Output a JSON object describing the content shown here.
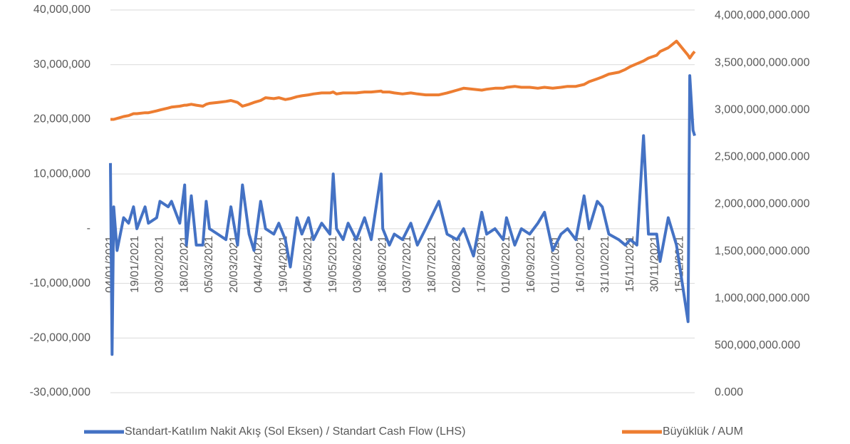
{
  "chart_data": {
    "type": "line",
    "x": [
      "04/01/2021",
      "05/01/2021",
      "06/01/2021",
      "08/01/2021",
      "12/01/2021",
      "15/01/2021",
      "18/01/2021",
      "20/01/2021",
      "25/01/2021",
      "27/01/2021",
      "01/02/2021",
      "03/02/2021",
      "08/02/2021",
      "10/02/2021",
      "15/02/2021",
      "18/02/2021",
      "19/02/2021",
      "22/02/2021",
      "25/02/2021",
      "01/03/2021",
      "03/03/2021",
      "05/03/2021",
      "10/03/2021",
      "15/03/2021",
      "18/03/2021",
      "22/03/2021",
      "25/03/2021",
      "29/03/2021",
      "01/04/2021",
      "05/04/2021",
      "08/04/2021",
      "13/04/2021",
      "16/04/2021",
      "20/04/2021",
      "23/04/2021",
      "27/04/2021",
      "30/04/2021",
      "04/05/2021",
      "07/05/2021",
      "12/05/2021",
      "17/05/2021",
      "19/05/2021",
      "21/05/2021",
      "25/05/2021",
      "28/05/2021",
      "02/06/2021",
      "07/06/2021",
      "11/06/2021",
      "17/06/2021",
      "18/06/2021",
      "22/06/2021",
      "25/06/2021",
      "30/06/2021",
      "05/07/2021",
      "09/07/2021",
      "14/07/2021",
      "22/07/2021",
      "27/07/2021",
      "02/08/2021",
      "06/08/2021",
      "12/08/2021",
      "17/08/2021",
      "20/08/2021",
      "25/08/2021",
      "30/08/2021",
      "01/09/2021",
      "06/09/2021",
      "10/09/2021",
      "15/09/2021",
      "20/09/2021",
      "24/09/2021",
      "29/09/2021",
      "04/10/2021",
      "08/10/2021",
      "13/10/2021",
      "18/10/2021",
      "21/10/2021",
      "26/10/2021",
      "29/10/2021",
      "02/11/2021",
      "08/11/2021",
      "12/11/2021",
      "15/11/2021",
      "19/11/2021",
      "23/11/2021",
      "26/11/2021",
      "01/12/2021",
      "03/12/2021",
      "08/12/2021",
      "13/12/2021",
      "20/12/2021",
      "21/12/2021",
      "23/12/2021",
      "24/12/2021"
    ],
    "xlim": [
      "04/01/2021",
      "24/12/2021"
    ],
    "xticks": [
      "04/01/2021",
      "19/01/2021",
      "03/02/2021",
      "18/02/2021",
      "05/03/2021",
      "20/03/2021",
      "04/04/2021",
      "19/04/2021",
      "04/05/2021",
      "19/05/2021",
      "03/06/2021",
      "18/06/2021",
      "03/07/2021",
      "18/07/2021",
      "02/08/2021",
      "17/08/2021",
      "01/09/2021",
      "16/09/2021",
      "01/10/2021",
      "16/10/2021",
      "31/10/2021",
      "15/11/2021",
      "30/11/2021",
      "15/12/2021"
    ],
    "ylim": [
      -30000000,
      40000000
    ],
    "yticks": [
      {
        "value": 40000000,
        "label": "40,000,000"
      },
      {
        "value": 30000000,
        "label": "30,000,000"
      },
      {
        "value": 20000000,
        "label": "20,000,000"
      },
      {
        "value": 10000000,
        "label": "10,000,000"
      },
      {
        "value": 0,
        "label": "-"
      },
      {
        "value": -10000000,
        "label": "-10,000,000"
      },
      {
        "value": -20000000,
        "label": "-20,000,000"
      },
      {
        "value": -30000000,
        "label": "-30,000,000"
      }
    ],
    "y2lim": [
      0,
      4000000000000
    ],
    "y2ticks": [
      {
        "value": 4000000000000,
        "label": "4,000,000,000.000"
      },
      {
        "value": 3500000000000,
        "label": "3,500,000,000.000"
      },
      {
        "value": 3000000000000,
        "label": "3,000,000,000.000"
      },
      {
        "value": 2500000000000,
        "label": "2,500,000,000.000"
      },
      {
        "value": 2000000000000,
        "label": "2,000,000,000.000"
      },
      {
        "value": 1500000000000,
        "label": "1,500,000,000.000"
      },
      {
        "value": 1000000000000,
        "label": "1,000,000,000.000"
      },
      {
        "value": 500000000000,
        "label": "500,000,000.000"
      },
      {
        "value": 0,
        "label": "0.000"
      }
    ],
    "grid": true,
    "legend": "bottom",
    "series": [
      {
        "name": "Standart-Katılım Nakit Akış (Sol Eksen) / Standart Cash Flow (LHS)",
        "color": "#4472c4",
        "values": [
          12000000,
          -23000000,
          4000000,
          -4000000,
          2000000,
          1000000,
          4000000,
          0,
          4000000,
          1000000,
          2000000,
          5000000,
          4000000,
          5000000,
          1000000,
          8000000,
          -3000000,
          6000000,
          -3000000,
          -3000000,
          5000000,
          0,
          -1000000,
          -2000000,
          4000000,
          -3000000,
          8000000,
          -1000000,
          -4000000,
          5000000,
          0,
          -1000000,
          1000000,
          -2000000,
          -7000000,
          2000000,
          -1000000,
          2000000,
          -2000000,
          1000000,
          -1000000,
          10000000,
          0,
          -2000000,
          1000000,
          -2000000,
          2000000,
          -2000000,
          10000000,
          0,
          -3000000,
          -1000000,
          -2000000,
          1000000,
          -3000000,
          0,
          5000000,
          -1000000,
          -2000000,
          0,
          -5000000,
          3000000,
          -1000000,
          0,
          -2000000,
          2000000,
          -3000000,
          0,
          -1000000,
          1000000,
          3000000,
          -4000000,
          -1000000,
          0,
          -2000000,
          6000000,
          0,
          5000000,
          4000000,
          -1000000,
          -2000000,
          -3000000,
          -2000000,
          -3000000,
          17000000,
          -1000000,
          -1000000,
          -6000000,
          2000000,
          -3000000,
          -17000000,
          28000000,
          18000000,
          17000000
        ]
      },
      {
        "name": "Büyüklük / AUM",
        "color": "#ed7d31",
        "axis": "y2",
        "values": [
          2900000000000.0,
          2900000000000.0,
          2900000000000.0,
          2910000000000.0,
          2930000000000.0,
          2940000000000.0,
          2960000000000.0,
          2960000000000.0,
          2970000000000.0,
          2970000000000.0,
          2990000000000.0,
          3000000000000.0,
          3020000000000.0,
          3030000000000.0,
          3040000000000.0,
          3050000000000.0,
          3050000000000.0,
          3060000000000.0,
          3050000000000.0,
          3040000000000.0,
          3060000000000.0,
          3070000000000.0,
          3080000000000.0,
          3090000000000.0,
          3100000000000.0,
          3080000000000.0,
          3040000000000.0,
          3060000000000.0,
          3080000000000.0,
          3100000000000.0,
          3130000000000.0,
          3120000000000.0,
          3130000000000.0,
          3110000000000.0,
          3120000000000.0,
          3140000000000.0,
          3150000000000.0,
          3160000000000.0,
          3170000000000.0,
          3180000000000.0,
          3180000000000.0,
          3190000000000.0,
          3170000000000.0,
          3180000000000.0,
          3180000000000.0,
          3180000000000.0,
          3190000000000.0,
          3190000000000.0,
          3200000000000.0,
          3190000000000.0,
          3190000000000.0,
          3180000000000.0,
          3170000000000.0,
          3180000000000.0,
          3170000000000.0,
          3160000000000.0,
          3160000000000.0,
          3180000000000.0,
          3210000000000.0,
          3230000000000.0,
          3220000000000.0,
          3210000000000.0,
          3220000000000.0,
          3230000000000.0,
          3230000000000.0,
          3240000000000.0,
          3250000000000.0,
          3240000000000.0,
          3240000000000.0,
          3230000000000.0,
          3240000000000.0,
          3230000000000.0,
          3240000000000.0,
          3250000000000.0,
          3250000000000.0,
          3270000000000.0,
          3300000000000.0,
          3330000000000.0,
          3350000000000.0,
          3380000000000.0,
          3400000000000.0,
          3430000000000.0,
          3460000000000.0,
          3490000000000.0,
          3520000000000.0,
          3550000000000.0,
          3580000000000.0,
          3620000000000.0,
          3660000000000.0,
          3730000000000.0,
          3580000000000.0,
          3550000000000.0,
          3600000000000.0,
          3620000000000.0
        ]
      }
    ]
  }
}
